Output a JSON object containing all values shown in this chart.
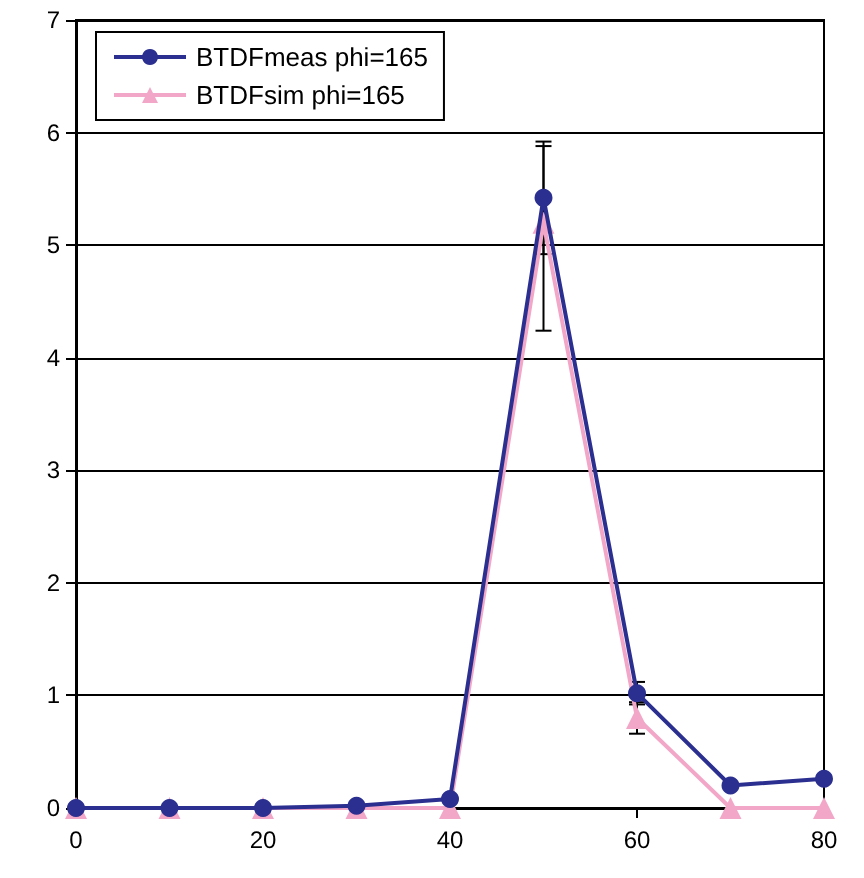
{
  "chart_data": {
    "type": "line",
    "x": [
      0,
      10,
      20,
      30,
      40,
      50,
      60,
      70,
      80
    ],
    "series": [
      {
        "name": "BTDFmeas phi=165",
        "color": "#2b2f8f",
        "marker": "circle",
        "values": [
          0,
          0,
          0,
          0.02,
          0.08,
          5.42,
          1.02,
          0.2,
          0.26
        ],
        "errors": [
          null,
          null,
          null,
          null,
          null,
          0.5,
          0.1,
          null,
          null
        ]
      },
      {
        "name": "BTDFsim phi=165",
        "color": "#f2a7c8",
        "marker": "triangle",
        "values": [
          0,
          0,
          0,
          0,
          0,
          5.2,
          0.8,
          0,
          0
        ],
        "errors": [
          null,
          null,
          null,
          null,
          null,
          [
            4.24,
            5.88
          ],
          [
            0.66,
            0.94
          ],
          null,
          null
        ]
      }
    ],
    "xlim": [
      0,
      80
    ],
    "xticks": [
      0,
      20,
      40,
      60,
      80
    ],
    "ylim": [
      0,
      7
    ],
    "yticks": [
      0,
      1,
      2,
      3,
      4,
      5,
      6,
      7
    ],
    "grid": "y",
    "legend": "top left"
  }
}
